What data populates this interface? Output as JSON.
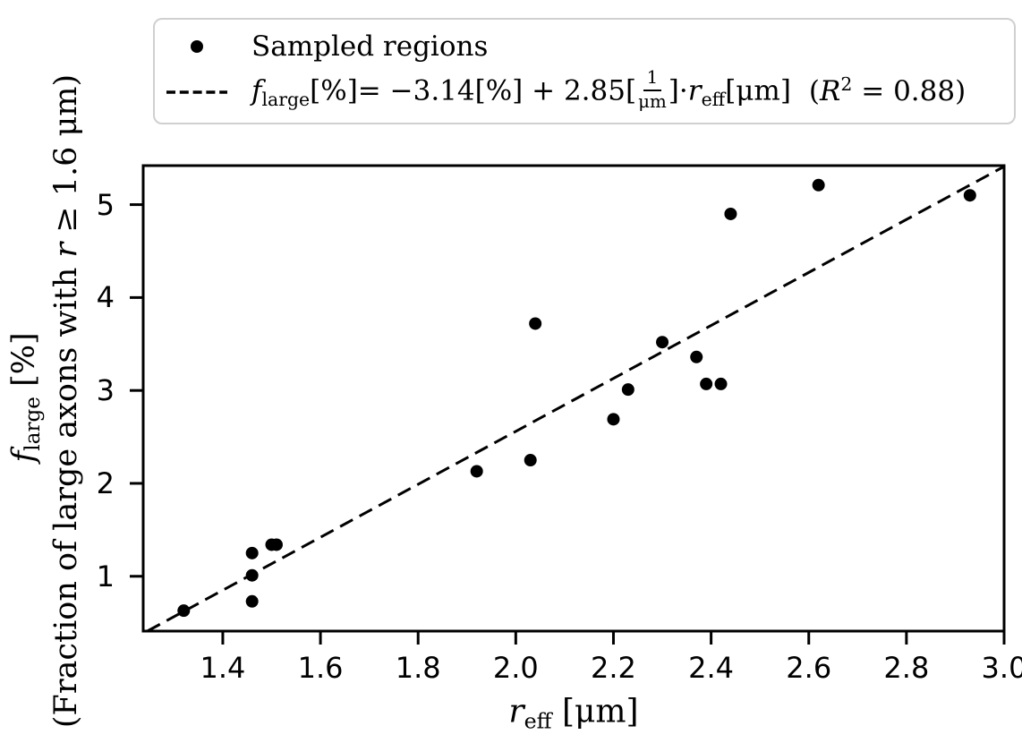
{
  "figure": {
    "colors": {
      "foreground": "#000000",
      "legend_border": "#d0d0d0",
      "background": "#ffffff"
    },
    "legend": {
      "sampled_label": "Sampled regions",
      "fit": {
        "f_var": "f",
        "f_sub": "large",
        "mid": "[%]= −3.14[%] + 2.85[",
        "frac_num": "1",
        "frac_den": "μm",
        "after_frac": "]·",
        "r_var": "r",
        "r_sub": "eff",
        "r_unit": "[μm]",
        "r2_open": "(",
        "r2_var": "R",
        "r2_sup": "2",
        "r2_rest": " = 0.88)"
      }
    },
    "xlabel": {
      "var": "r",
      "sub": "eff",
      "unit": " [μm]"
    },
    "ylabel_line1": {
      "var": "f",
      "sub": "large",
      "unit": " [%]"
    },
    "ylabel_line2": {
      "pre": "(Fraction of large axons with ",
      "var": "r",
      "post": " ≥ 1.6 μm)"
    }
  },
  "chart_data": {
    "type": "scatter",
    "title": "",
    "xlabel": "r_eff [μm]",
    "ylabel": "f_large [%] (Fraction of large axons with r ≥ 1.6 μm)",
    "xlim": [
      1.237,
      3.0
    ],
    "ylim": [
      0.41,
      5.42
    ],
    "grid": false,
    "legend_position": "above axes, centered",
    "x_ticks": [
      1.4,
      1.6,
      1.8,
      2.0,
      2.2,
      2.4,
      2.6,
      2.8,
      3.0
    ],
    "x_tick_labels": [
      "1.4",
      "1.6",
      "1.8",
      "2.0",
      "2.2",
      "2.4",
      "2.6",
      "2.8",
      "3.0"
    ],
    "y_ticks": [
      1,
      2,
      3,
      4,
      5
    ],
    "y_tick_labels": [
      "1",
      "2",
      "3",
      "4",
      "5"
    ],
    "series": [
      {
        "name": "Sampled regions",
        "type": "scatter",
        "marker": "circle",
        "color": "#000000",
        "points": [
          [
            1.32,
            0.63
          ],
          [
            1.46,
            1.25
          ],
          [
            1.46,
            1.01
          ],
          [
            1.46,
            0.73
          ],
          [
            1.5,
            1.34
          ],
          [
            1.51,
            1.34
          ],
          [
            1.92,
            2.13
          ],
          [
            2.03,
            2.25
          ],
          [
            2.04,
            3.72
          ],
          [
            2.2,
            2.69
          ],
          [
            2.23,
            3.01
          ],
          [
            2.3,
            3.52
          ],
          [
            2.37,
            3.36
          ],
          [
            2.39,
            3.07
          ],
          [
            2.42,
            3.07
          ],
          [
            2.44,
            4.9
          ],
          [
            2.62,
            5.21
          ],
          [
            2.93,
            5.1
          ]
        ]
      }
    ],
    "fit_line": {
      "label": "f_large[%]= −3.14[%] + 2.85[1/μm]·r_eff[μm]  (R² = 0.88)",
      "slope": 2.85,
      "intercept": -3.14,
      "r_squared": 0.88,
      "style": "dashed",
      "color": "#000000"
    }
  }
}
